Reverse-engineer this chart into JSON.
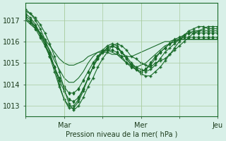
{
  "bg_color": "#d8f0e8",
  "grid_color": "#aacca0",
  "line_color": "#1a6b2a",
  "marker_color": "#1a6b2a",
  "xlabel": "Pression niveau de la mer( hPa )",
  "ylim": [
    1012.5,
    1017.8
  ],
  "yticks": [
    1013,
    1014,
    1015,
    1016,
    1017
  ],
  "xtick_labels": [
    "",
    "Mar",
    "",
    "Mer",
    "",
    "Jeu"
  ],
  "xtick_positions": [
    0,
    48,
    96,
    144,
    192,
    240
  ],
  "series": [
    [
      1017.4,
      1017.3,
      1017.1,
      1016.8,
      1016.4,
      1015.9,
      1015.3,
      1014.6,
      1013.8,
      1013.1,
      1012.8,
      1013.0,
      1013.4,
      1013.9,
      1014.3,
      1014.8,
      1015.2,
      1015.5,
      1015.8,
      1015.9,
      1015.8,
      1015.6,
      1015.3,
      1015.2,
      1015.0,
      1014.9,
      1014.8,
      1015.0,
      1015.1,
      1015.2,
      1015.4,
      1015.6,
      1015.8,
      1016.0,
      1016.2,
      1016.4,
      1016.5,
      1016.6,
      1016.7,
      1016.7,
      1016.7
    ],
    [
      1017.5,
      1017.3,
      1017.0,
      1016.6,
      1016.1,
      1015.5,
      1014.8,
      1014.0,
      1013.3,
      1012.9,
      1012.9,
      1013.2,
      1013.7,
      1014.3,
      1014.8,
      1015.3,
      1015.6,
      1015.8,
      1015.9,
      1015.8,
      1015.5,
      1015.2,
      1014.9,
      1014.7,
      1014.5,
      1014.4,
      1014.4,
      1014.6,
      1014.8,
      1015.1,
      1015.4,
      1015.7,
      1016.0,
      1016.3,
      1016.5,
      1016.6,
      1016.7,
      1016.7,
      1016.6,
      1016.6,
      1016.6
    ],
    [
      1017.3,
      1017.1,
      1016.8,
      1016.4,
      1015.9,
      1015.3,
      1014.6,
      1013.9,
      1013.3,
      1013.0,
      1013.0,
      1013.3,
      1013.8,
      1014.3,
      1014.8,
      1015.2,
      1015.5,
      1015.7,
      1015.8,
      1015.7,
      1015.5,
      1015.3,
      1015.0,
      1014.8,
      1014.7,
      1014.6,
      1014.7,
      1014.9,
      1015.2,
      1015.5,
      1015.7,
      1015.9,
      1016.1,
      1016.3,
      1016.4,
      1016.5,
      1016.5,
      1016.5,
      1016.5,
      1016.5,
      1016.5
    ],
    [
      1017.2,
      1017.0,
      1016.7,
      1016.3,
      1015.9,
      1015.4,
      1014.8,
      1014.2,
      1013.7,
      1013.3,
      1013.2,
      1013.4,
      1013.8,
      1014.3,
      1014.8,
      1015.2,
      1015.5,
      1015.7,
      1015.8,
      1015.7,
      1015.5,
      1015.2,
      1014.9,
      1014.7,
      1014.6,
      1014.7,
      1014.9,
      1015.2,
      1015.5,
      1015.7,
      1015.9,
      1016.1,
      1016.2,
      1016.3,
      1016.4,
      1016.4,
      1016.4,
      1016.4,
      1016.4,
      1016.4,
      1016.4
    ],
    [
      1017.1,
      1016.9,
      1016.6,
      1016.2,
      1015.8,
      1015.3,
      1014.8,
      1014.3,
      1013.9,
      1013.6,
      1013.6,
      1013.8,
      1014.2,
      1014.6,
      1015.0,
      1015.3,
      1015.5,
      1015.6,
      1015.6,
      1015.5,
      1015.3,
      1015.0,
      1014.8,
      1014.7,
      1014.6,
      1014.7,
      1015.0,
      1015.3,
      1015.5,
      1015.7,
      1015.9,
      1016.0,
      1016.1,
      1016.2,
      1016.2,
      1016.2,
      1016.2,
      1016.2,
      1016.2,
      1016.2,
      1016.2
    ],
    [
      1017.0,
      1016.9,
      1016.7,
      1016.4,
      1016.0,
      1015.6,
      1015.1,
      1014.7,
      1014.3,
      1014.1,
      1014.1,
      1014.3,
      1014.6,
      1015.0,
      1015.3,
      1015.5,
      1015.6,
      1015.6,
      1015.5,
      1015.4,
      1015.2,
      1015.0,
      1014.9,
      1014.8,
      1014.9,
      1015.0,
      1015.2,
      1015.4,
      1015.6,
      1015.8,
      1015.9,
      1016.0,
      1016.1,
      1016.1,
      1016.1,
      1016.1,
      1016.1,
      1016.1,
      1016.1,
      1016.1,
      1016.1
    ],
    [
      1017.0,
      1016.8,
      1016.6,
      1016.4,
      1016.1,
      1015.8,
      1015.5,
      1015.2,
      1015.0,
      1014.9,
      1014.9,
      1015.0,
      1015.1,
      1015.3,
      1015.4,
      1015.5,
      1015.5,
      1015.5,
      1015.4,
      1015.4,
      1015.3,
      1015.3,
      1015.3,
      1015.4,
      1015.5,
      1015.6,
      1015.7,
      1015.8,
      1015.9,
      1016.0,
      1016.0,
      1016.1,
      1016.1,
      1016.1,
      1016.1,
      1016.1,
      1016.1,
      1016.1,
      1016.1,
      1016.1,
      1016.1
    ]
  ],
  "n_points": 41
}
